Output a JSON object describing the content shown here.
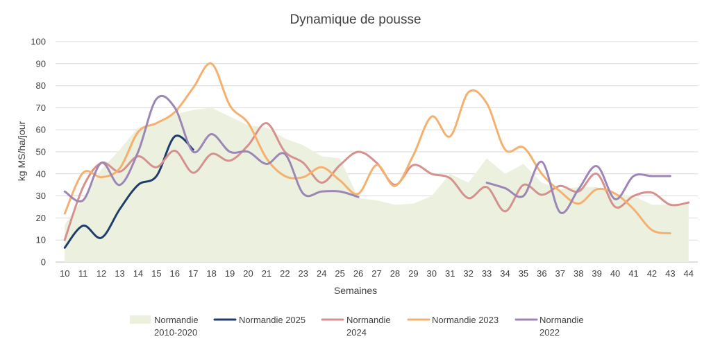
{
  "chart_data": {
    "type": "line",
    "title": "Dynamique de pousse",
    "xlabel": "Semaines",
    "ylabel": "kg MS/ha/jour",
    "ylim": [
      0,
      100
    ],
    "yticks": [
      0,
      10,
      20,
      30,
      40,
      50,
      60,
      70,
      80,
      90,
      100
    ],
    "categories": [
      "10",
      "11",
      "12",
      "13",
      "14",
      "15",
      "16",
      "17",
      "18",
      "19",
      "20",
      "21",
      "22",
      "23",
      "24",
      "25",
      "26",
      "27",
      "28",
      "29",
      "30",
      "31",
      "32",
      "33",
      "34",
      "35",
      "36",
      "37",
      "38",
      "39",
      "40",
      "41",
      "42",
      "43",
      "44"
    ],
    "grid": true,
    "legend_position": "bottom",
    "series": [
      {
        "name": "Normandie 2010-2020",
        "name_lines": [
          "Normandie",
          "2010-2020"
        ],
        "kind": "area",
        "color": "#ebf0df",
        "values": [
          17,
          29,
          42,
          51,
          61,
          63,
          67,
          69,
          70,
          66,
          62,
          61,
          56,
          53,
          48,
          47,
          29,
          28,
          26,
          26.5,
          30,
          40,
          36,
          47,
          40,
          44.5,
          36,
          33,
          34,
          34,
          31,
          30,
          26,
          26,
          27
        ]
      },
      {
        "name": "Normandie 2025",
        "name_lines": [
          "Normandie 2025"
        ],
        "kind": "line",
        "color": "#1f3d6b",
        "width": 3,
        "values": [
          6.5,
          16.5,
          11,
          24,
          35,
          39,
          57,
          51,
          null,
          null,
          null,
          null,
          null,
          null,
          null,
          null,
          null,
          null,
          null,
          null,
          null,
          null,
          null,
          null,
          null,
          null,
          null,
          null,
          null,
          null,
          null,
          null,
          null,
          null,
          null
        ]
      },
      {
        "name": "Normandie 2024",
        "name_lines": [
          "Normandie",
          "2024"
        ],
        "kind": "line",
        "color": "#d4918d",
        "width": 3,
        "values": [
          10,
          34,
          45,
          41,
          48,
          43,
          50.5,
          40.5,
          49,
          46,
          53,
          63,
          50,
          45,
          36,
          44,
          50,
          45,
          35,
          44,
          40,
          38,
          29,
          34,
          23,
          35,
          30.5,
          34.5,
          32,
          40,
          25,
          30,
          31.5,
          26,
          27
        ]
      },
      {
        "name": "Normandie 2023",
        "name_lines": [
          "Normandie 2023"
        ],
        "kind": "line",
        "color": "#f5b06e",
        "width": 3,
        "values": [
          22,
          40.5,
          38.5,
          42.5,
          59,
          63,
          68,
          79,
          90,
          71,
          63,
          47,
          39,
          38.5,
          43,
          37,
          31,
          44,
          34.5,
          48.5,
          66,
          57,
          77,
          72,
          51,
          52,
          40,
          32,
          26.5,
          33,
          31,
          24,
          14.5,
          13,
          null
        ]
      },
      {
        "name": "Normandie 2022",
        "name_lines": [
          "Normandie",
          "2022"
        ],
        "kind": "line",
        "color": "#9b86b5",
        "width": 3,
        "values": [
          32,
          28,
          45,
          35,
          50,
          74,
          70,
          50,
          58,
          50,
          50,
          44.5,
          49,
          31,
          32,
          32,
          29.5,
          null,
          null,
          null,
          null,
          null,
          null,
          36,
          33.5,
          30,
          45.5,
          22.5,
          33,
          43.5,
          28.5,
          39,
          39,
          39,
          null
        ]
      }
    ]
  }
}
